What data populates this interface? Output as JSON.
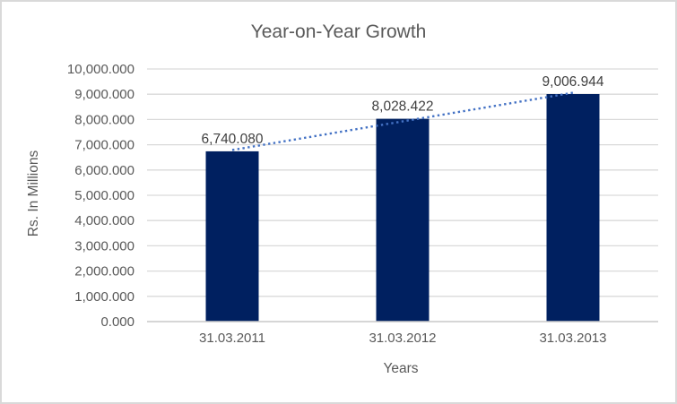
{
  "chart_data": {
    "type": "bar",
    "title": "Year-on-Year Growth",
    "xlabel": "Years",
    "ylabel": "Rs. In Millions",
    "categories": [
      "31.03.2011",
      "31.03.2012",
      "31.03.2013"
    ],
    "values": [
      6740.08,
      8028.422,
      9006.944
    ],
    "data_labels": [
      "6,740.080",
      "8,028.422",
      "9,006.944"
    ],
    "ylim": [
      0,
      10000
    ],
    "y_tick_step": 1000,
    "y_tick_labels": [
      "0.000",
      "1,000.000",
      "2,000.000",
      "3,000.000",
      "4,000.000",
      "5,000.000",
      "6,000.000",
      "7,000.000",
      "8,000.000",
      "9,000.000",
      "10,000.000"
    ],
    "grid": true,
    "legend": "none",
    "trendline": {
      "type": "linear",
      "style": "dotted",
      "color": "#4472C4"
    },
    "colors": {
      "bar": "#002060",
      "gridline": "#D9D9D9",
      "axis_line": "#C9C9C9",
      "title_text": "#595959",
      "tick_text": "#595959",
      "data_label_text": "#404040",
      "border": "#D9D9D9",
      "background": "#FFFFFF"
    }
  }
}
